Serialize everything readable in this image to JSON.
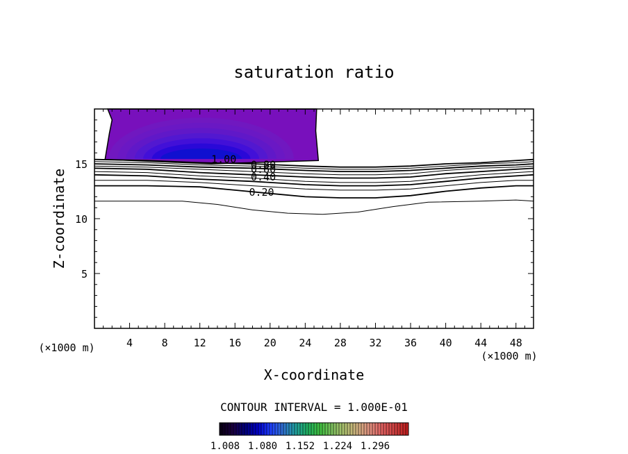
{
  "chart_data": {
    "type": "contour",
    "title": "saturation ratio",
    "xlabel": "X-coordinate",
    "ylabel": "Z-coordinate",
    "x_unit_label": "(×1000 m)",
    "y_unit_label": "(×1000 m)",
    "xlim": [
      0,
      50
    ],
    "ylim": [
      0,
      20
    ],
    "x_ticks": [
      4,
      8,
      12,
      16,
      20,
      24,
      28,
      32,
      36,
      40,
      44,
      48
    ],
    "y_ticks": [
      5,
      10,
      15
    ],
    "contour_interval_text": "CONTOUR INTERVAL = 1.000E-01",
    "contour_labels": [
      {
        "text": "1.00",
        "x": 13.3,
        "z": 15.4
      },
      {
        "text": "0.80",
        "x": 17.8,
        "z": 14.9
      },
      {
        "text": "0.60",
        "x": 17.8,
        "z": 14.5
      },
      {
        "text": "0.40",
        "x": 17.8,
        "z": 13.8
      },
      {
        "text": "0.20",
        "x": 17.6,
        "z": 12.4
      }
    ],
    "contour_lines": [
      {
        "level": 1.0,
        "points": [
          [
            0,
            15.4
          ],
          [
            6,
            15.3
          ],
          [
            12,
            15.1
          ],
          [
            18,
            15.0
          ],
          [
            24,
            14.8
          ],
          [
            28,
            14.7
          ],
          [
            32,
            14.7
          ],
          [
            36,
            14.8
          ],
          [
            40,
            15.0
          ],
          [
            44,
            15.1
          ],
          [
            48,
            15.3
          ],
          [
            50,
            15.4
          ]
        ]
      },
      {
        "level": 0.9,
        "points": [
          [
            0,
            15.2
          ],
          [
            6,
            15.1
          ],
          [
            12,
            14.9
          ],
          [
            18,
            14.8
          ],
          [
            24,
            14.6
          ],
          [
            28,
            14.5
          ],
          [
            32,
            14.5
          ],
          [
            36,
            14.6
          ],
          [
            40,
            14.8
          ],
          [
            44,
            15.0
          ],
          [
            48,
            15.1
          ],
          [
            50,
            15.2
          ]
        ]
      },
      {
        "level": 0.8,
        "points": [
          [
            0,
            15.0
          ],
          [
            6,
            14.9
          ],
          [
            12,
            14.7
          ],
          [
            18,
            14.6
          ],
          [
            24,
            14.4
          ],
          [
            28,
            14.3
          ],
          [
            32,
            14.3
          ],
          [
            36,
            14.4
          ],
          [
            40,
            14.6
          ],
          [
            44,
            14.8
          ],
          [
            48,
            14.9
          ],
          [
            50,
            15.0
          ]
        ]
      },
      {
        "level": 0.7,
        "points": [
          [
            0,
            14.8
          ],
          [
            6,
            14.7
          ],
          [
            12,
            14.5
          ],
          [
            18,
            14.3
          ],
          [
            24,
            14.1
          ],
          [
            28,
            14.0
          ],
          [
            32,
            14.0
          ],
          [
            36,
            14.1
          ],
          [
            40,
            14.4
          ],
          [
            44,
            14.6
          ],
          [
            48,
            14.7
          ],
          [
            50,
            14.8
          ]
        ]
      },
      {
        "level": 0.6,
        "points": [
          [
            0,
            14.6
          ],
          [
            6,
            14.5
          ],
          [
            12,
            14.2
          ],
          [
            18,
            14.0
          ],
          [
            24,
            13.8
          ],
          [
            28,
            13.7
          ],
          [
            32,
            13.7
          ],
          [
            36,
            13.8
          ],
          [
            40,
            14.1
          ],
          [
            44,
            14.3
          ],
          [
            48,
            14.5
          ],
          [
            50,
            14.6
          ]
        ]
      },
      {
        "level": 0.5,
        "points": [
          [
            0,
            14.3
          ],
          [
            6,
            14.2
          ],
          [
            12,
            13.9
          ],
          [
            18,
            13.7
          ],
          [
            24,
            13.4
          ],
          [
            28,
            13.3
          ],
          [
            32,
            13.3
          ],
          [
            36,
            13.4
          ],
          [
            40,
            13.7
          ],
          [
            44,
            14.0
          ],
          [
            48,
            14.2
          ],
          [
            50,
            14.3
          ]
        ]
      },
      {
        "level": 0.4,
        "points": [
          [
            0,
            14.0
          ],
          [
            6,
            13.9
          ],
          [
            12,
            13.6
          ],
          [
            18,
            13.4
          ],
          [
            24,
            13.1
          ],
          [
            28,
            13.0
          ],
          [
            32,
            13.0
          ],
          [
            36,
            13.1
          ],
          [
            40,
            13.4
          ],
          [
            44,
            13.7
          ],
          [
            48,
            13.9
          ],
          [
            50,
            14.0
          ]
        ]
      },
      {
        "level": 0.3,
        "points": [
          [
            0,
            13.5
          ],
          [
            6,
            13.5
          ],
          [
            12,
            13.3
          ],
          [
            18,
            13.0
          ],
          [
            24,
            12.7
          ],
          [
            28,
            12.6
          ],
          [
            32,
            12.6
          ],
          [
            36,
            12.7
          ],
          [
            40,
            13.0
          ],
          [
            44,
            13.3
          ],
          [
            48,
            13.5
          ],
          [
            50,
            13.5
          ]
        ]
      },
      {
        "level": 0.2,
        "points": [
          [
            0,
            13.0
          ],
          [
            6,
            13.0
          ],
          [
            12,
            12.9
          ],
          [
            16,
            12.6
          ],
          [
            20,
            12.3
          ],
          [
            24,
            12.0
          ],
          [
            28,
            11.9
          ],
          [
            32,
            11.9
          ],
          [
            36,
            12.1
          ],
          [
            40,
            12.5
          ],
          [
            44,
            12.8
          ],
          [
            48,
            13.0
          ],
          [
            50,
            13.0
          ]
        ]
      },
      {
        "level": 0.1,
        "points": [
          [
            0,
            11.6
          ],
          [
            6,
            11.6
          ],
          [
            10,
            11.6
          ],
          [
            14,
            11.3
          ],
          [
            18,
            10.8
          ],
          [
            22,
            10.5
          ],
          [
            26,
            10.4
          ],
          [
            30,
            10.6
          ],
          [
            34,
            11.1
          ],
          [
            38,
            11.5
          ],
          [
            44,
            11.6
          ],
          [
            48,
            11.7
          ],
          [
            50,
            11.6
          ]
        ]
      }
    ],
    "filled_region": {
      "x_range": [
        1.2,
        25.5
      ],
      "z_range": [
        15.3,
        20
      ],
      "levels": [
        1.008,
        1.02,
        1.03,
        1.04,
        1.05,
        1.06,
        1.07,
        1.08
      ]
    },
    "colorbar": {
      "min": 1.008,
      "max": 1.296,
      "tick_labels": [
        "1.008",
        "1.080",
        "1.152",
        "1.224",
        "1.296"
      ],
      "colors": [
        "#0c0018",
        "#1a0040",
        "#000080",
        "#0000c8",
        "#2040ff",
        "#3070d0",
        "#20a0a0",
        "#20b060",
        "#40c040",
        "#80c060",
        "#b0c070",
        "#d0b080",
        "#e09080",
        "#e06060",
        "#d04040",
        "#c02020"
      ]
    },
    "fill_colors": [
      "#1010d0",
      "#2a08d8",
      "#4210d8",
      "#5218d0",
      "#6018c8",
      "#6a18c4",
      "#7018c0",
      "#7810bc"
    ]
  }
}
